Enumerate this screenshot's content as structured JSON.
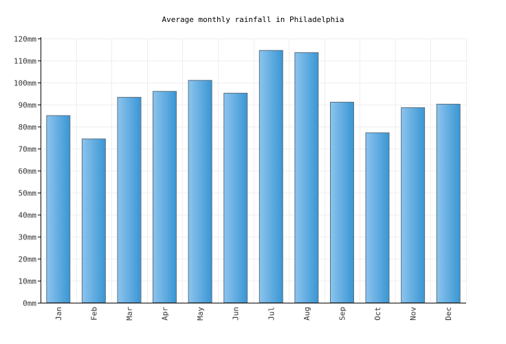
{
  "chart_data": {
    "type": "bar",
    "title": "Average monthly rainfall in Philadelphia",
    "xlabel": "",
    "ylabel": "",
    "categories": [
      "Jan",
      "Feb",
      "Mar",
      "Apr",
      "May",
      "Jun",
      "Jul",
      "Aug",
      "Sep",
      "Oct",
      "Nov",
      "Dec"
    ],
    "values": [
      85,
      74.4,
      93.3,
      96,
      101,
      95.2,
      114.6,
      113.6,
      91.1,
      77.2,
      88.6,
      90.2
    ],
    "ylim": [
      0,
      120
    ],
    "yticks": [
      0,
      10,
      20,
      30,
      40,
      50,
      60,
      70,
      80,
      90,
      100,
      110,
      120
    ],
    "ytick_labels": [
      "0mm",
      "10mm",
      "20mm",
      "30mm",
      "40mm",
      "50mm",
      "60mm",
      "70mm",
      "80mm",
      "90mm",
      "100mm",
      "110mm",
      "120mm"
    ],
    "grid": true,
    "legend": "none",
    "colors": {
      "bar_light": "#8cc4ee",
      "bar_dark": "#3a96d4",
      "bar_stroke": "#5a6f80",
      "grid": "#eeeeee",
      "axis": "#000000"
    }
  }
}
